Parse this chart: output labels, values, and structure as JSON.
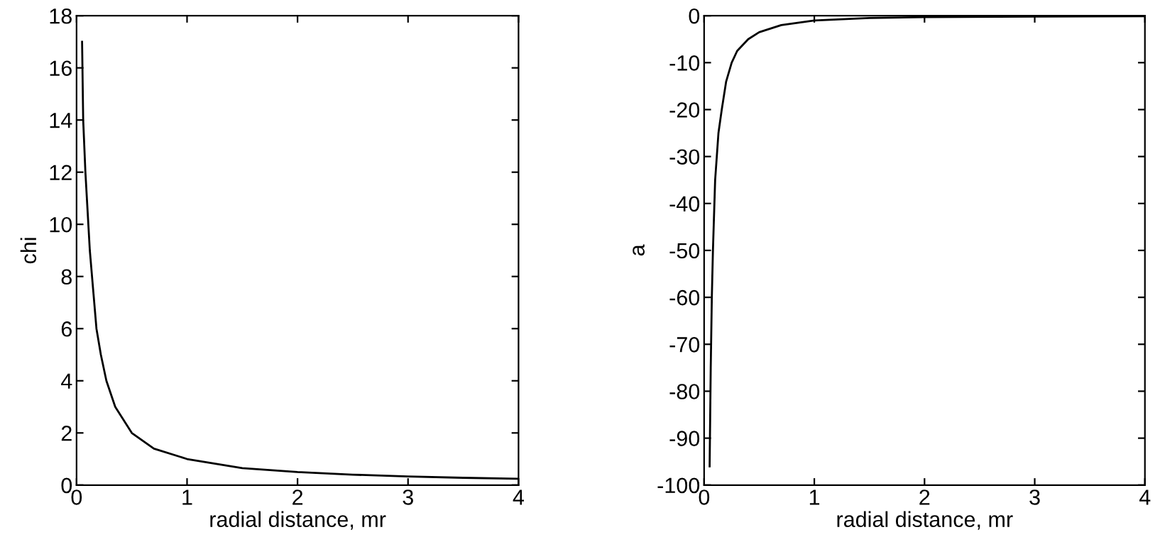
{
  "chart_data": [
    {
      "type": "line",
      "xlabel": "radial distance, mr",
      "ylabel": "chi",
      "xlim": [
        0,
        4
      ],
      "ylim": [
        0,
        18
      ],
      "xticks": [
        0,
        1,
        2,
        3,
        4
      ],
      "yticks": [
        0,
        2,
        4,
        6,
        8,
        10,
        12,
        14,
        16,
        18
      ],
      "grid": false,
      "series": [
        {
          "color": "#000000",
          "x": [
            0.05,
            0.06,
            0.08,
            0.1,
            0.12,
            0.15,
            0.18,
            0.22,
            0.27,
            0.35,
            0.5,
            0.7,
            1,
            1.5,
            2,
            2.5,
            3,
            3.5,
            4
          ],
          "values": [
            17,
            14,
            12,
            10.5,
            9,
            7.5,
            6,
            5,
            4,
            3,
            2,
            1.4,
            1,
            0.65,
            0.5,
            0.4,
            0.33,
            0.28,
            0.24
          ]
        }
      ]
    },
    {
      "type": "line",
      "xlabel": "radial distance, mr",
      "ylabel": "a",
      "xlim": [
        0,
        4
      ],
      "ylim": [
        -100,
        0
      ],
      "xticks": [
        0,
        1,
        2,
        3,
        4
      ],
      "yticks": [
        -100,
        -90,
        -80,
        -70,
        -60,
        -50,
        -40,
        -30,
        -20,
        -10,
        0
      ],
      "grid": false,
      "series": [
        {
          "color": "#000000",
          "x": [
            0.05,
            0.06,
            0.07,
            0.08,
            0.1,
            0.13,
            0.16,
            0.2,
            0.25,
            0.3,
            0.4,
            0.5,
            0.7,
            1,
            1.5,
            2,
            3,
            4
          ],
          "values": [
            -96,
            -75,
            -60,
            -50,
            -35,
            -25,
            -20,
            -14,
            -10,
            -7.5,
            -5,
            -3.5,
            -2,
            -1,
            -0.5,
            -0.3,
            -0.2,
            -0.1
          ]
        }
      ]
    }
  ]
}
